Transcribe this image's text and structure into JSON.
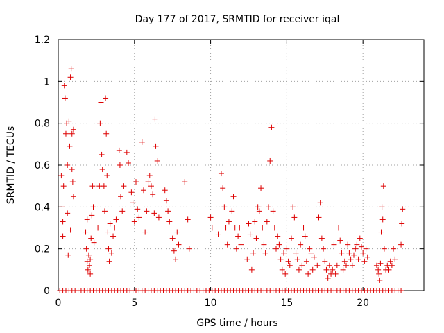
{
  "chart_data": {
    "type": "scatter",
    "title": "Day 177 of 2017, SRMTID for receiver iqal",
    "xlabel": "GPS time / hours",
    "ylabel": "SRMTID / TECUs",
    "xlim": [
      0,
      24
    ],
    "ylim": [
      0,
      1.2
    ],
    "xticks": [
      0,
      5,
      10,
      15,
      20
    ],
    "xtick_labels": [
      "0",
      "5",
      "10",
      "15",
      "20"
    ],
    "yticks": [
      0,
      0.2,
      0.4,
      0.6,
      0.8,
      1.0,
      1.2
    ],
    "ytick_labels": [
      "0",
      "0.2",
      "0.4",
      "0.6",
      "0.8",
      "1",
      "1.2"
    ],
    "grid": true,
    "marker": "+",
    "color": "#dd0000",
    "series": [
      {
        "name": "SRMTID",
        "points": [
          [
            0.2,
            0.55
          ],
          [
            0.25,
            0.4
          ],
          [
            0.3,
            0.26
          ],
          [
            0.35,
            0.5
          ],
          [
            0.4,
            0.98
          ],
          [
            0.45,
            0.92
          ],
          [
            0.5,
            0.75
          ],
          [
            0.55,
            0.8
          ],
          [
            0.6,
            0.6
          ],
          [
            0.65,
            0.17
          ],
          [
            0.7,
            0.81
          ],
          [
            0.75,
            0.69
          ],
          [
            0.8,
            1.02
          ],
          [
            0.85,
            1.06
          ],
          [
            0.9,
            0.75
          ],
          [
            0.95,
            0.52
          ],
          [
            1.0,
            0.45
          ],
          [
            0.3,
            0.33
          ],
          [
            0.6,
            0.37
          ],
          [
            0.8,
            0.29
          ],
          [
            0.9,
            0.58
          ],
          [
            1.0,
            0.77
          ],
          [
            1.8,
            0.28
          ],
          [
            1.85,
            0.2
          ],
          [
            1.9,
            0.14
          ],
          [
            1.95,
            0.1
          ],
          [
            2.0,
            0.17
          ],
          [
            2.05,
            0.12
          ],
          [
            2.1,
            0.08
          ],
          [
            2.15,
            0.25
          ],
          [
            2.2,
            0.36
          ],
          [
            2.25,
            0.5
          ],
          [
            2.3,
            0.4
          ],
          [
            2.35,
            0.23
          ],
          [
            1.9,
            0.34
          ],
          [
            2.1,
            0.15
          ],
          [
            2.6,
            0.3
          ],
          [
            2.7,
            0.5
          ],
          [
            2.75,
            0.8
          ],
          [
            2.8,
            0.9
          ],
          [
            2.85,
            0.65
          ],
          [
            2.9,
            0.58
          ],
          [
            3.0,
            0.5
          ],
          [
            3.05,
            0.38
          ],
          [
            3.1,
            0.92
          ],
          [
            3.15,
            0.75
          ],
          [
            3.2,
            0.55
          ],
          [
            3.25,
            0.28
          ],
          [
            3.3,
            0.2
          ],
          [
            3.35,
            0.14
          ],
          [
            3.4,
            0.32
          ],
          [
            3.5,
            0.18
          ],
          [
            3.6,
            0.26
          ],
          [
            3.7,
            0.3
          ],
          [
            3.8,
            0.34
          ],
          [
            4.0,
            0.67
          ],
          [
            4.05,
            0.6
          ],
          [
            4.1,
            0.45
          ],
          [
            4.2,
            0.38
          ],
          [
            4.3,
            0.5
          ],
          [
            4.5,
            0.66
          ],
          [
            4.6,
            0.61
          ],
          [
            4.8,
            0.47
          ],
          [
            4.9,
            0.42
          ],
          [
            5.0,
            0.33
          ],
          [
            5.1,
            0.52
          ],
          [
            5.2,
            0.39
          ],
          [
            5.3,
            0.35
          ],
          [
            5.5,
            0.71
          ],
          [
            5.6,
            0.48
          ],
          [
            5.7,
            0.28
          ],
          [
            5.8,
            0.38
          ],
          [
            5.9,
            0.52
          ],
          [
            6.0,
            0.55
          ],
          [
            6.1,
            0.5
          ],
          [
            6.2,
            0.46
          ],
          [
            6.3,
            0.37
          ],
          [
            6.35,
            0.82
          ],
          [
            6.4,
            0.69
          ],
          [
            6.5,
            0.62
          ],
          [
            6.6,
            0.35
          ],
          [
            7.0,
            0.48
          ],
          [
            7.1,
            0.43
          ],
          [
            7.2,
            0.38
          ],
          [
            7.3,
            0.33
          ],
          [
            7.5,
            0.25
          ],
          [
            7.6,
            0.19
          ],
          [
            7.7,
            0.15
          ],
          [
            7.8,
            0.28
          ],
          [
            7.9,
            0.22
          ],
          [
            8.3,
            0.52
          ],
          [
            8.5,
            0.34
          ],
          [
            8.6,
            0.2
          ],
          [
            10.0,
            0.35
          ],
          [
            10.1,
            0.3
          ],
          [
            10.5,
            0.27
          ],
          [
            10.7,
            0.56
          ],
          [
            10.8,
            0.49
          ],
          [
            10.9,
            0.4
          ],
          [
            11.0,
            0.3
          ],
          [
            11.1,
            0.22
          ],
          [
            11.2,
            0.33
          ],
          [
            11.4,
            0.38
          ],
          [
            11.5,
            0.45
          ],
          [
            11.6,
            0.3
          ],
          [
            11.7,
            0.2
          ],
          [
            11.8,
            0.26
          ],
          [
            11.9,
            0.3
          ],
          [
            12.0,
            0.22
          ],
          [
            12.4,
            0.15
          ],
          [
            12.5,
            0.32
          ],
          [
            12.6,
            0.27
          ],
          [
            12.7,
            0.1
          ],
          [
            12.8,
            0.18
          ],
          [
            12.9,
            0.33
          ],
          [
            13.0,
            0.25
          ],
          [
            13.1,
            0.4
          ],
          [
            13.2,
            0.38
          ],
          [
            13.3,
            0.49
          ],
          [
            13.4,
            0.3
          ],
          [
            13.5,
            0.22
          ],
          [
            13.6,
            0.18
          ],
          [
            13.7,
            0.33
          ],
          [
            13.8,
            0.4
          ],
          [
            13.9,
            0.62
          ],
          [
            14.0,
            0.78
          ],
          [
            14.1,
            0.38
          ],
          [
            14.2,
            0.3
          ],
          [
            14.3,
            0.2
          ],
          [
            14.4,
            0.26
          ],
          [
            14.5,
            0.22
          ],
          [
            14.6,
            0.15
          ],
          [
            14.7,
            0.1
          ],
          [
            14.8,
            0.18
          ],
          [
            14.9,
            0.08
          ],
          [
            15.0,
            0.2
          ],
          [
            15.1,
            0.14
          ],
          [
            15.2,
            0.12
          ],
          [
            15.3,
            0.25
          ],
          [
            15.4,
            0.4
          ],
          [
            15.5,
            0.35
          ],
          [
            15.6,
            0.18
          ],
          [
            15.7,
            0.15
          ],
          [
            15.8,
            0.1
          ],
          [
            15.9,
            0.22
          ],
          [
            16.0,
            0.12
          ],
          [
            16.1,
            0.3
          ],
          [
            16.2,
            0.26
          ],
          [
            16.3,
            0.14
          ],
          [
            16.4,
            0.08
          ],
          [
            16.5,
            0.2
          ],
          [
            16.6,
            0.18
          ],
          [
            16.7,
            0.1
          ],
          [
            16.8,
            0.16
          ],
          [
            17.0,
            0.12
          ],
          [
            17.1,
            0.35
          ],
          [
            17.2,
            0.42
          ],
          [
            17.3,
            0.25
          ],
          [
            17.4,
            0.2
          ],
          [
            17.5,
            0.14
          ],
          [
            17.6,
            0.1
          ],
          [
            17.7,
            0.06
          ],
          [
            17.8,
            0.12
          ],
          [
            17.9,
            0.08
          ],
          [
            18.0,
            0.1
          ],
          [
            18.1,
            0.22
          ],
          [
            18.2,
            0.08
          ],
          [
            18.3,
            0.12
          ],
          [
            18.4,
            0.3
          ],
          [
            18.5,
            0.24
          ],
          [
            18.6,
            0.18
          ],
          [
            18.7,
            0.1
          ],
          [
            18.8,
            0.14
          ],
          [
            18.9,
            0.12
          ],
          [
            19.0,
            0.22
          ],
          [
            19.1,
            0.18
          ],
          [
            19.2,
            0.15
          ],
          [
            19.3,
            0.12
          ],
          [
            19.4,
            0.17
          ],
          [
            19.5,
            0.2
          ],
          [
            19.6,
            0.22
          ],
          [
            19.7,
            0.15
          ],
          [
            19.8,
            0.25
          ],
          [
            19.9,
            0.21
          ],
          [
            20.0,
            0.18
          ],
          [
            20.1,
            0.14
          ],
          [
            20.2,
            0.2
          ],
          [
            20.3,
            0.16
          ],
          [
            20.9,
            0.12
          ],
          [
            21.0,
            0.1
          ],
          [
            21.05,
            0.08
          ],
          [
            21.1,
            0.05
          ],
          [
            21.15,
            0.13
          ],
          [
            21.2,
            0.28
          ],
          [
            21.25,
            0.4
          ],
          [
            21.3,
            0.34
          ],
          [
            21.35,
            0.5
          ],
          [
            21.4,
            0.2
          ],
          [
            21.5,
            0.1
          ],
          [
            21.6,
            0.12
          ],
          [
            21.7,
            0.1
          ],
          [
            21.8,
            0.14
          ],
          [
            21.9,
            0.12
          ],
          [
            22.0,
            0.2
          ],
          [
            22.1,
            0.15
          ],
          [
            22.5,
            0.22
          ],
          [
            22.55,
            0.32
          ],
          [
            22.6,
            0.39
          ]
        ]
      },
      {
        "name": "zero-level",
        "x": [
          0.1,
          0.3,
          0.5,
          0.7,
          0.9,
          1.1,
          1.3,
          1.5,
          1.7,
          1.9,
          2.1,
          2.3,
          2.5,
          2.7,
          2.9,
          3.1,
          3.3,
          3.5,
          3.7,
          3.9,
          4.1,
          4.3,
          4.5,
          4.7,
          4.9,
          5.1,
          5.3,
          5.5,
          5.7,
          5.9,
          6.1,
          6.3,
          6.5,
          6.7,
          6.9,
          7.1,
          7.3,
          7.5,
          7.7,
          7.9,
          8.1,
          8.3,
          8.5,
          8.7,
          8.9,
          9.1,
          9.3,
          9.5,
          9.7,
          9.9,
          10.1,
          10.3,
          10.5,
          10.7,
          10.9,
          11.1,
          11.3,
          11.5,
          11.7,
          11.9,
          12.1,
          12.3,
          12.5,
          12.7,
          12.9,
          13.1,
          13.3,
          13.5,
          13.7,
          13.9,
          14.1,
          14.3,
          14.5,
          14.7,
          14.9,
          15.1,
          15.3,
          15.5,
          15.7,
          15.9,
          16.1,
          16.3,
          16.5,
          16.7,
          16.9,
          17.1,
          17.3,
          17.5,
          17.7,
          17.9,
          18.1,
          18.3,
          18.5,
          18.7,
          18.9,
          19.1,
          19.3,
          19.5,
          19.7,
          19.9,
          20.1,
          20.3,
          20.5,
          20.7,
          20.9,
          21.1,
          21.3,
          21.5,
          21.7,
          21.9,
          22.1,
          22.3,
          22.5
        ]
      }
    ]
  }
}
